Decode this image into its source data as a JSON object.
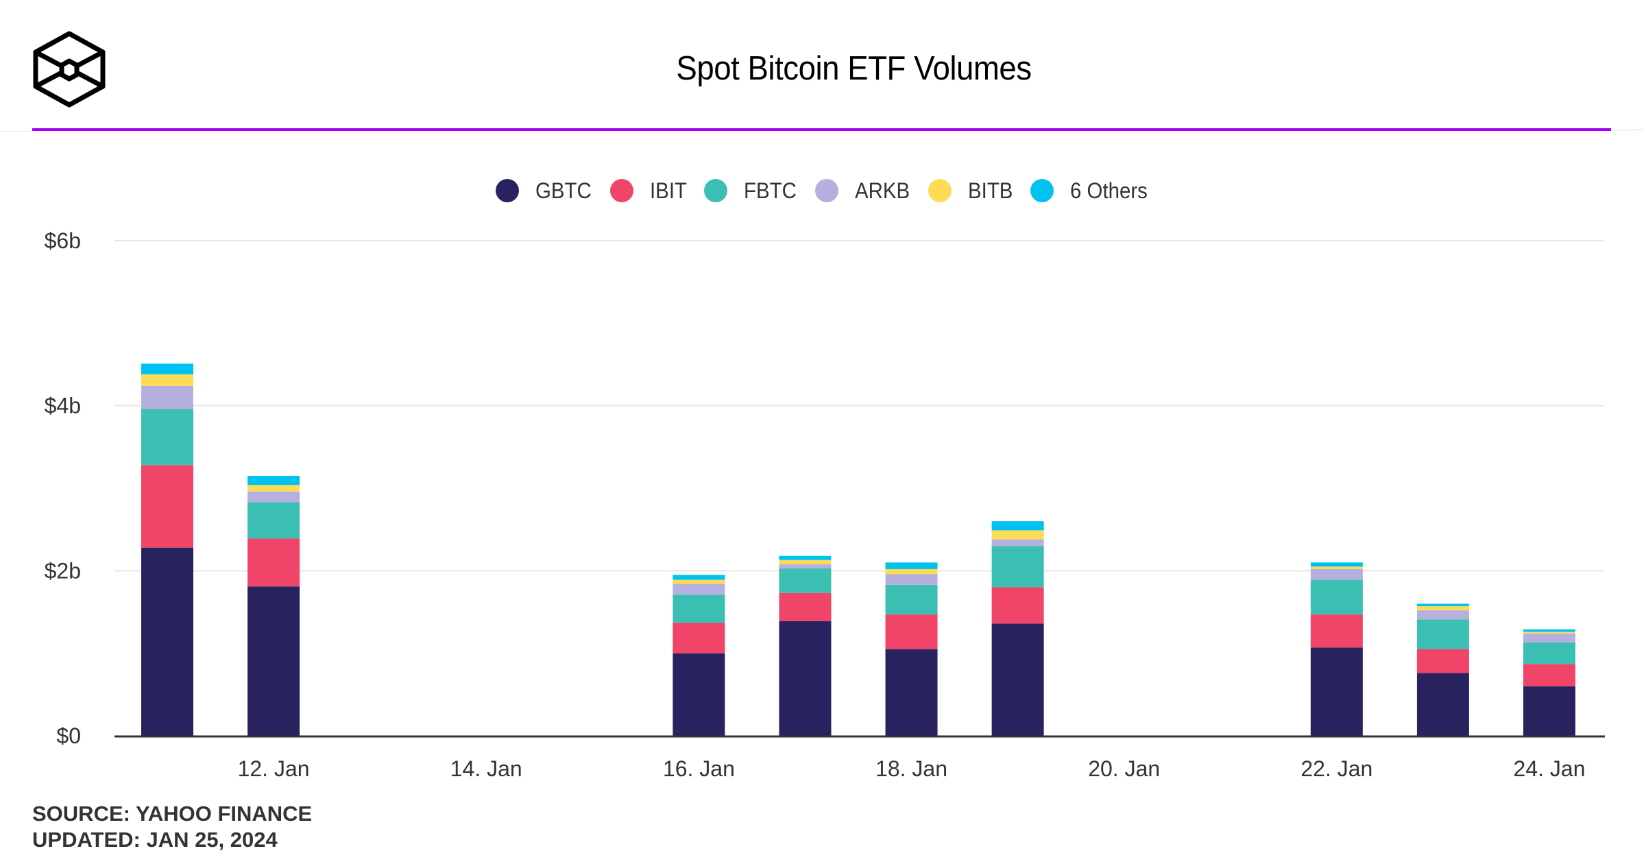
{
  "header": {
    "title": "Spot Bitcoin ETF Volumes",
    "logo": "hex-cube-logo-icon",
    "accent_color": "#a100f2"
  },
  "legend": [
    {
      "label": "GBTC",
      "color": "#28235e"
    },
    {
      "label": "IBIT",
      "color": "#f04468"
    },
    {
      "label": "FBTC",
      "color": "#3bbfb2"
    },
    {
      "label": "ARKB",
      "color": "#b5b0df"
    },
    {
      "label": "BITB",
      "color": "#fddb55"
    },
    {
      "label": "6 Others",
      "color": "#00c2f0"
    }
  ],
  "footer": {
    "source": "SOURCE: YAHOO FINANCE",
    "updated": "UPDATED: JAN 25, 2024"
  },
  "chart_data": {
    "type": "bar",
    "stacked": true,
    "title": "Spot Bitcoin ETF Volumes",
    "xlabel": "",
    "ylabel": "",
    "unit": "USD billions",
    "ylim": [
      0,
      6
    ],
    "yticks": [
      {
        "value": 0,
        "label": "$0"
      },
      {
        "value": 2,
        "label": "$2b"
      },
      {
        "value": 4,
        "label": "$4b"
      },
      {
        "value": 6,
        "label": "$6b"
      }
    ],
    "xlim_days": [
      10.2,
      24.5
    ],
    "xticks": [
      {
        "day": 12,
        "label": "12. Jan"
      },
      {
        "day": 14,
        "label": "14. Jan"
      },
      {
        "day": 16,
        "label": "16. Jan"
      },
      {
        "day": 18,
        "label": "18. Jan"
      },
      {
        "day": 20,
        "label": "20. Jan"
      },
      {
        "day": 22,
        "label": "22. Jan"
      },
      {
        "day": 24,
        "label": "24. Jan"
      }
    ],
    "grid": true,
    "legend_position": "top-center",
    "categories": [
      "11 Jan",
      "12 Jan",
      "16 Jan",
      "17 Jan",
      "18 Jan",
      "19 Jan",
      "22 Jan",
      "23 Jan",
      "24 Jan"
    ],
    "category_days": [
      11,
      12,
      16,
      17,
      18,
      19,
      22,
      23,
      24
    ],
    "series": [
      {
        "name": "GBTC",
        "color": "#28235e",
        "values": [
          2.28,
          1.81,
          1.0,
          1.39,
          1.05,
          1.36,
          1.07,
          0.76,
          0.6
        ]
      },
      {
        "name": "IBIT",
        "color": "#f04468",
        "values": [
          1.0,
          0.58,
          0.37,
          0.34,
          0.42,
          0.44,
          0.4,
          0.29,
          0.27
        ]
      },
      {
        "name": "FBTC",
        "color": "#3bbfb2",
        "values": [
          0.68,
          0.44,
          0.34,
          0.3,
          0.36,
          0.5,
          0.42,
          0.36,
          0.26
        ]
      },
      {
        "name": "ARKB",
        "color": "#b5b0df",
        "values": [
          0.28,
          0.13,
          0.13,
          0.05,
          0.13,
          0.08,
          0.13,
          0.11,
          0.11
        ]
      },
      {
        "name": "BITB",
        "color": "#fddb55",
        "values": [
          0.14,
          0.08,
          0.05,
          0.05,
          0.06,
          0.11,
          0.03,
          0.05,
          0.02
        ]
      },
      {
        "name": "6 Others",
        "color": "#00c2f0",
        "values": [
          0.13,
          0.11,
          0.06,
          0.05,
          0.08,
          0.11,
          0.05,
          0.03,
          0.03
        ]
      }
    ]
  }
}
